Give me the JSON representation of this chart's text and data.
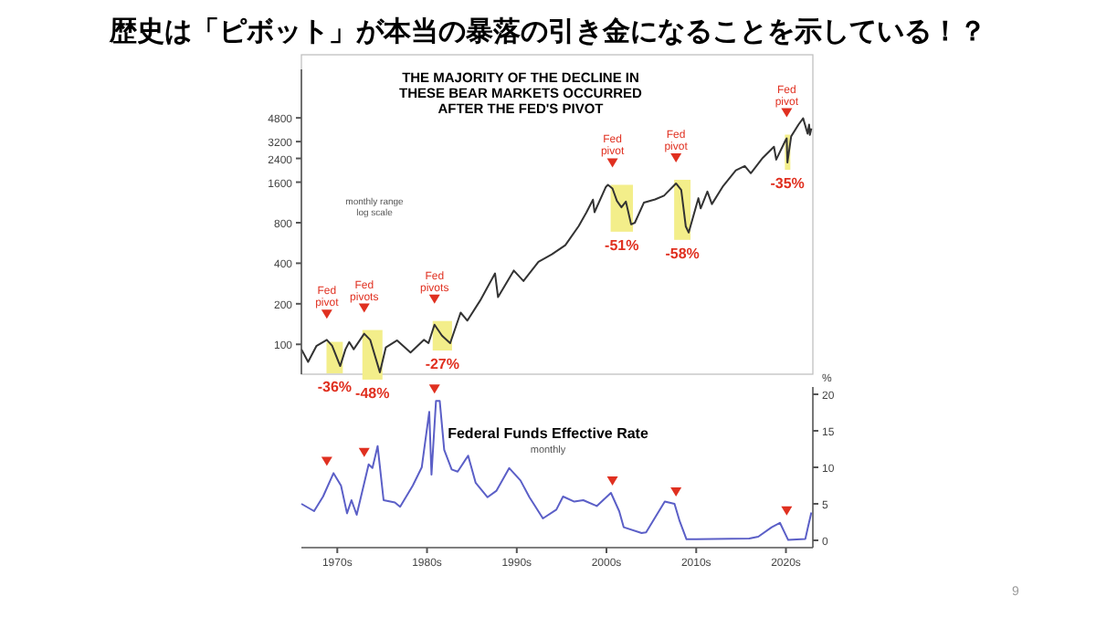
{
  "chart_data": [
    {
      "type": "line",
      "title": "歴史は「ピボット」が本当の暴落の引き金になることを示している！？",
      "subtitle": "THE MAJORITY OF THE DECLINE IN THESE BEAR MARKETS OCCURRED AFTER THE FED'S PIVOT",
      "log": true,
      "tick_labels": "y",
      "xlim": [
        "1966-01",
        "2023-01"
      ],
      "ylim": [
        60,
        11000
      ],
      "yticks": [
        100,
        200,
        400,
        800,
        1600,
        2400,
        3200,
        4800
      ],
      "x": [
        "1966-01",
        "1966-10",
        "1967-09",
        "1968-11",
        "1969-06",
        "1970-05",
        "1970-12",
        "1971-05",
        "1971-11",
        "1973-01",
        "1973-09",
        "1974-10",
        "1975-06",
        "1976-09",
        "1978-03",
        "1979-09",
        "1980-03",
        "1980-11",
        "1981-09",
        "1982-08",
        "1983-10",
        "1984-07",
        "1985-12",
        "1987-08",
        "1987-12",
        "1989-09",
        "1990-10",
        "1992-06",
        "1993-12",
        "1995-06",
        "1996-12",
        "1997-10",
        "1998-07",
        "1998-09",
        "1999-12",
        "2000-03",
        "2000-09",
        "2001-03",
        "2001-09",
        "2002-03",
        "2002-10",
        "2003-03",
        "2004-03",
        "2005-06",
        "2006-06",
        "2007-10",
        "2008-05",
        "2008-11",
        "2009-03",
        "2010-04",
        "2010-07",
        "2011-04",
        "2011-10",
        "2013-01",
        "2014-06",
        "2015-06",
        "2016-02",
        "2017-06",
        "2018-09",
        "2018-12",
        "2019-12",
        "2020-02",
        "2020-03",
        "2020-08",
        "2021-06",
        "2021-12",
        "2022-06",
        "2022-08",
        "2022-09",
        "2022-11"
      ],
      "series": [
        {
          "color": "#333333",
          "values": [
            92,
            74,
            97,
            108,
            98,
            69,
            92,
            104,
            92,
            120,
            108,
            62,
            95,
            107,
            87,
            108,
            102,
            140,
            116,
            102,
            172,
            150,
            211,
            336,
            224,
            353,
            295,
            410,
            466,
            545,
            757,
            950,
            1186,
            957,
            1469,
            1527,
            1436,
            1160,
            1040,
            1147,
            777,
            800,
            1126,
            1191,
            1270,
            1565,
            1400,
            752,
            676,
            1217,
            1022,
            1363,
            1099,
            1498,
            1960,
            2107,
            1864,
            2423,
            2930,
            2350,
            3230,
            3386,
            2237,
            3500,
            4297,
            4766,
            3666,
            4280,
            3585,
            4000
          ]
        }
      ],
      "bands": [
        {
          "axis": "x",
          "from": "1969-01",
          "to": "1970-06",
          "label": "-36%",
          "color": "#f3ee8a"
        },
        {
          "axis": "x",
          "from": "1973-01",
          "to": "1974-11",
          "label": "-48%",
          "color": "#f3ee8a"
        },
        {
          "axis": "x",
          "from": "1980-11",
          "to": "1982-08",
          "label": "-27%",
          "color": "#f3ee8a"
        },
        {
          "axis": "x",
          "from": "2000-09",
          "to": "2002-10",
          "label": "-51%",
          "color": "#f3ee8a"
        },
        {
          "axis": "x",
          "from": "2007-10",
          "to": "2009-03",
          "label": "-58%",
          "color": "#f3ee8a"
        },
        {
          "axis": "x",
          "from": "2020-02",
          "to": "2020-04",
          "label": "-35%",
          "color": "#f3ee8a"
        }
      ],
      "annotations": [
        {
          "text": "Fed pivot",
          "x": "1968-11",
          "y": 108
        },
        {
          "text": "Fed pivots",
          "x": "1973-01",
          "y": 120
        },
        {
          "text": "Fed pivots",
          "x": "1980-11",
          "y": 140
        },
        {
          "text": "Fed pivot",
          "x": "2000-09",
          "y": 1436
        },
        {
          "text": "Fed pivot",
          "x": "2007-10",
          "y": 1565
        },
        {
          "text": "Fed pivot",
          "x": "2020-02",
          "y": 3386
        },
        "monthly range",
        "log scale",
        "9"
      ]
    },
    {
      "type": "line",
      "title": "Federal Funds Effective Rate",
      "subtitle": "monthly",
      "ylabel": "%",
      "xlim": [
        "1966-01",
        "2023-01"
      ],
      "xticks": [
        {
          "value": "1970-01",
          "label": "1970s"
        },
        {
          "value": "1980-01",
          "label": "1980s"
        },
        {
          "value": "1990-01",
          "label": "1990s"
        },
        {
          "value": "2000-01",
          "label": "2000s"
        },
        {
          "value": "2010-01",
          "label": "2010s"
        },
        {
          "value": "2020-01",
          "label": "2020s"
        }
      ],
      "ylim": [
        -1,
        21
      ],
      "yticks": [
        0,
        5,
        10,
        15,
        20
      ],
      "x": [
        "1966-01",
        "1967-06",
        "1968-06",
        "1969-08",
        "1970-06",
        "1971-02",
        "1971-08",
        "1972-03",
        "1973-07",
        "1973-12",
        "1974-07",
        "1975-03",
        "1976-06",
        "1977-01",
        "1978-06",
        "1979-06",
        "1980-04",
        "1980-07",
        "1981-01",
        "1981-06",
        "1981-12",
        "1982-10",
        "1983-06",
        "1984-08",
        "1985-06",
        "1986-10",
        "1987-10",
        "1989-03",
        "1990-06",
        "1991-06",
        "1992-12",
        "1994-06",
        "1995-03",
        "1996-06",
        "1997-06",
        "1998-12",
        "2000-07",
        "2001-06",
        "2001-12",
        "2003-12",
        "2004-06",
        "2006-07",
        "2007-08",
        "2008-03",
        "2008-12",
        "2015-12",
        "2016-12",
        "2018-06",
        "2019-05",
        "2020-04",
        "2022-03",
        "2022-06",
        "2022-11"
      ],
      "series": [
        {
          "color": "#5b5fc7",
          "values": [
            5,
            4,
            6,
            9.2,
            7.5,
            3.7,
            5.5,
            3.5,
            10.4,
            9.9,
            12.9,
            5.5,
            5.2,
            4.6,
            7.5,
            10,
            17.6,
            9,
            19.1,
            19.1,
            12.4,
            9.7,
            9.4,
            11.6,
            7.9,
            5.9,
            6.8,
            9.9,
            8.2,
            5.9,
            3,
            4.2,
            6,
            5.3,
            5.5,
            4.7,
            6.5,
            4,
            1.8,
            1,
            1.1,
            5.3,
            5,
            2.6,
            0.15,
            0.25,
            0.5,
            1.8,
            2.4,
            0.05,
            0.2,
            1.6,
            3.8
          ]
        }
      ]
    }
  ]
}
